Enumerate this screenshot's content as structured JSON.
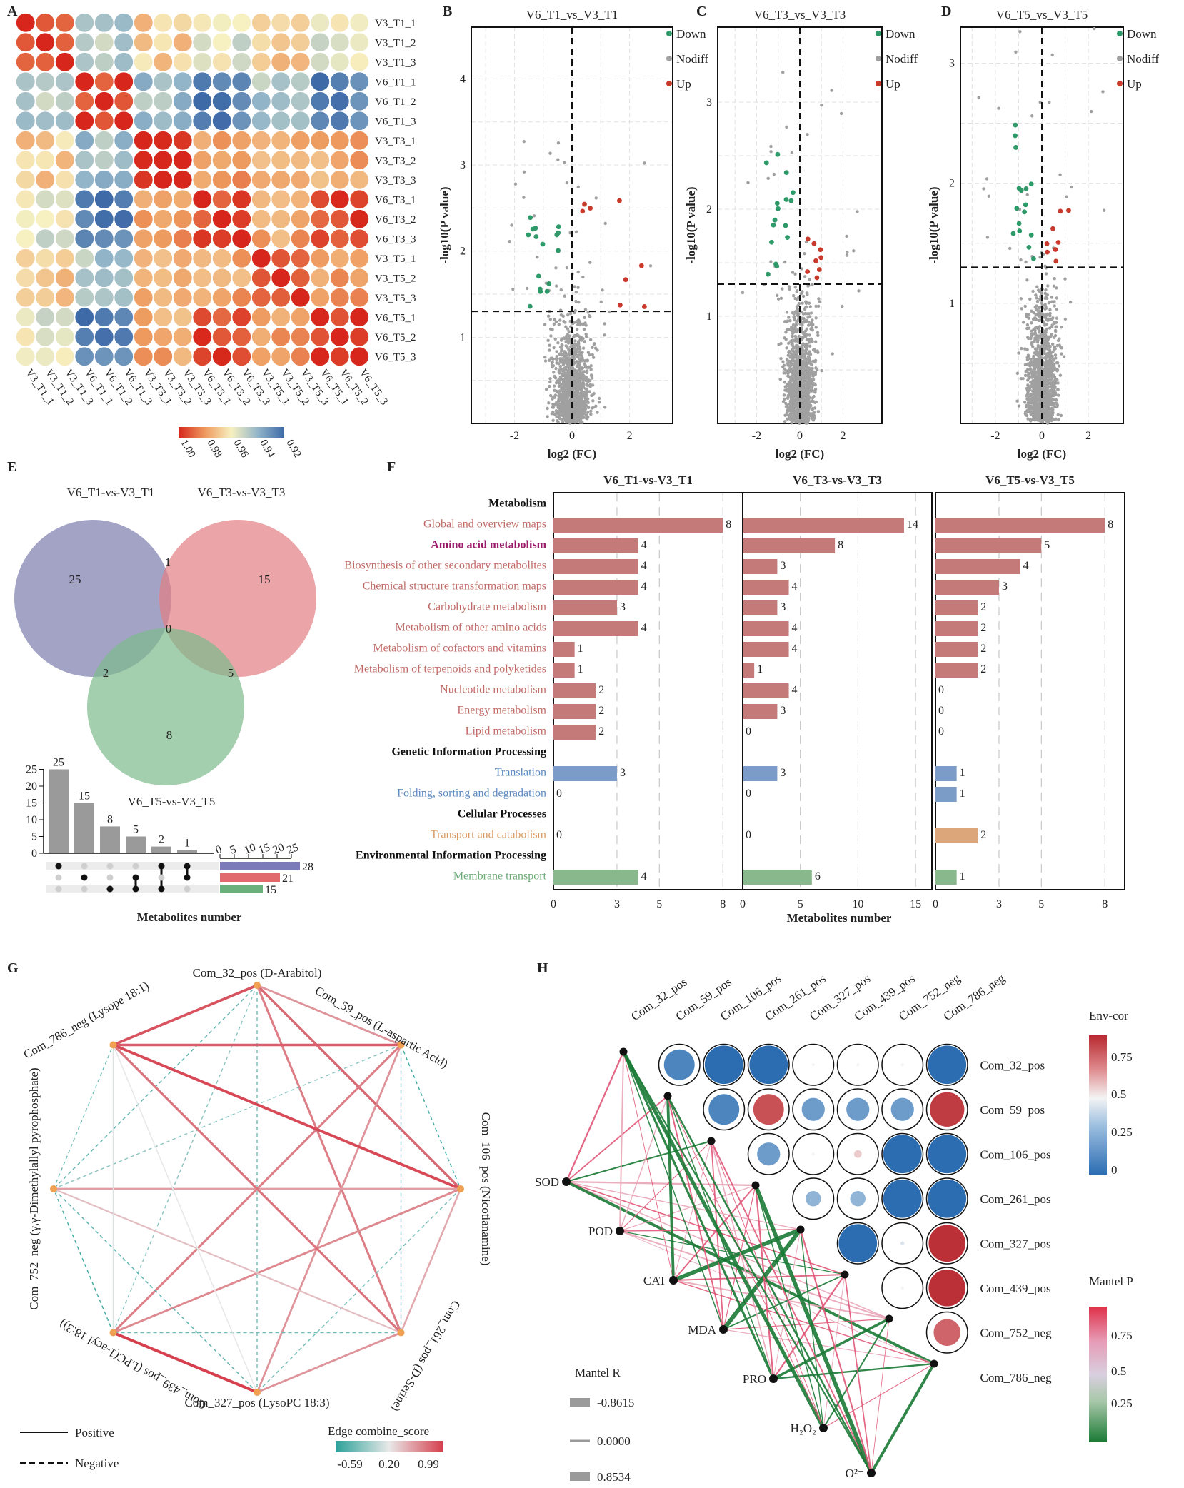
{
  "panel_letters": {
    "a": "A",
    "b": "B",
    "c": "C",
    "d": "D",
    "e": "E",
    "f": "F",
    "g": "G",
    "h": "H"
  },
  "heatmap": {
    "samples": [
      "V3_T1_1",
      "V3_T1_2",
      "V3_T1_3",
      "V6_T1_1",
      "V6_T1_2",
      "V6_T1_3",
      "V3_T3_1",
      "V3_T3_2",
      "V3_T3_3",
      "V6_T3_1",
      "V6_T3_2",
      "V6_T3_3",
      "V3_T5_1",
      "V3_T5_2",
      "V3_T5_3",
      "V6_T5_1",
      "V6_T5_2",
      "V6_T5_3"
    ],
    "colorbar_ticks": [
      "1.00",
      "0.98",
      "0.96",
      "0.94",
      "0.92"
    ]
  },
  "volcano": {
    "ylabel": "-log10(P value)",
    "xlabel": "log2 (FC)",
    "legend": [
      "Down",
      "Nodiff",
      "Up"
    ],
    "colors": {
      "down": "#2e9a69",
      "nodiff": "#a0a0a0",
      "up": "#c73a2c"
    },
    "panels": [
      {
        "title": "V6_T1_vs_V3_T1",
        "yticks": [
          "1",
          "2",
          "3",
          "4"
        ],
        "xticks": [
          "-2",
          "0",
          "2"
        ]
      },
      {
        "title": "V6_T3_vs_V3_T3",
        "yticks": [
          "1",
          "2",
          "3"
        ],
        "xticks": [
          "-2",
          "0",
          "2"
        ]
      },
      {
        "title": "V6_T5_vs_V3_T5",
        "yticks": [
          "1",
          "2",
          "3"
        ],
        "xticks": [
          "-2",
          "0",
          "2"
        ]
      }
    ]
  },
  "venn": {
    "sets": [
      "V6_T1-vs-V3_T1",
      "V6_T3-vs-V3_T3",
      "V6_T5-vs-V3_T5"
    ],
    "counts": {
      "a_only": "25",
      "ab": "1",
      "b_only": "15",
      "abc": "0",
      "ac": "2",
      "bc": "5",
      "c_only": "8"
    },
    "upset_bars": [
      25,
      15,
      8,
      5,
      2,
      1
    ],
    "upset_yticks": [
      "0",
      "5",
      "10",
      "15",
      "20",
      "25"
    ],
    "set_sizes": [
      28,
      21,
      15
    ],
    "set_size_ticks": [
      "0",
      "5",
      "10",
      "15",
      "20",
      "25"
    ],
    "xlabel": "Metabolites number"
  },
  "kegg": {
    "panel_titles": [
      "V6_T1-vs-V3_T1",
      "V6_T3-vs-V3_T3",
      "V6_T5-vs-V3_T5"
    ],
    "xlabel": "Metabolites number",
    "xticks": [
      [
        "0",
        "3",
        "5",
        "8"
      ],
      [
        "0",
        "5",
        "10",
        "15"
      ],
      [
        "0",
        "3",
        "5",
        "8"
      ]
    ],
    "rows": [
      {
        "label": "Metabolism",
        "type": "header"
      },
      {
        "label": "Global and overview maps",
        "type": "metab",
        "values": [
          8,
          14,
          8
        ]
      },
      {
        "label": "Amino acid metabolism",
        "type": "metab_hl",
        "values": [
          4,
          8,
          5
        ]
      },
      {
        "label": "Biosynthesis of other secondary metabolites",
        "type": "metab",
        "values": [
          4,
          3,
          4
        ]
      },
      {
        "label": "Chemical structure transformation maps",
        "type": "metab",
        "values": [
          4,
          4,
          3
        ]
      },
      {
        "label": "Carbohydrate metabolism",
        "type": "metab",
        "values": [
          3,
          3,
          2
        ]
      },
      {
        "label": "Metabolism of other amino acids",
        "type": "metab",
        "values": [
          4,
          4,
          2
        ]
      },
      {
        "label": "Metabolism of cofactors and vitamins",
        "type": "metab",
        "values": [
          1,
          4,
          2
        ]
      },
      {
        "label": "Metabolism of terpenoids and polyketides",
        "type": "metab",
        "values": [
          1,
          1,
          2
        ]
      },
      {
        "label": "Nucleotide metabolism",
        "type": "metab",
        "values": [
          2,
          4,
          0
        ]
      },
      {
        "label": "Energy metabolism",
        "type": "metab",
        "values": [
          2,
          3,
          0
        ]
      },
      {
        "label": "Lipid metabolism",
        "type": "metab",
        "values": [
          2,
          0,
          0
        ]
      },
      {
        "label": "Genetic Information Processing",
        "type": "header"
      },
      {
        "label": "Translation",
        "type": "genetic",
        "values": [
          3,
          3,
          1
        ]
      },
      {
        "label": "Folding, sorting and degradation",
        "type": "genetic",
        "values": [
          0,
          0,
          1
        ]
      },
      {
        "label": "Cellular Processes",
        "type": "header"
      },
      {
        "label": "Transport and catabolism",
        "type": "cellular",
        "values": [
          0,
          0,
          2
        ]
      },
      {
        "label": "Environmental Information Processing",
        "type": "header"
      },
      {
        "label": "Membrane transport",
        "type": "env",
        "values": [
          4,
          6,
          1
        ]
      }
    ],
    "colors": {
      "metab": "#c47a78",
      "metab_hl": "#9c1a6b",
      "genetic": "#7a9cc6",
      "cellular": "#dca67a",
      "env": "#88b88c"
    }
  },
  "network": {
    "nodes": [
      {
        "label": "Com_32_pos (D-Arabitol)"
      },
      {
        "label": "Com_59_pos (L-aspartic Acid)"
      },
      {
        "label": "Com_106_pos (Nicotianamine)"
      },
      {
        "label": "Com_261_pos (D-Serine)"
      },
      {
        "label": "Com_327_pos (LysoPC 18:3)"
      },
      {
        "label": "Com_439_pos (LPC(1-acyl 18:3))"
      },
      {
        "label": "Com_752_neg (γ,γ-Dimethylallyl pyrophosphate)"
      },
      {
        "label": "Com_786_neg (Lysope 18:1)"
      }
    ],
    "edges": [
      {
        "a": 0,
        "b": 7,
        "score": 0.9
      },
      {
        "a": 0,
        "b": 2,
        "score": 0.8
      },
      {
        "a": 0,
        "b": 3,
        "score": 0.7
      },
      {
        "a": 0,
        "b": 1,
        "score": 0.6
      },
      {
        "a": 0,
        "b": 4,
        "score": -0.3
      },
      {
        "a": 0,
        "b": 5,
        "score": -0.2
      },
      {
        "a": 0,
        "b": 6,
        "score": -0.4
      },
      {
        "a": 1,
        "b": 2,
        "score": -0.5
      },
      {
        "a": 1,
        "b": 7,
        "score": 0.85
      },
      {
        "a": 1,
        "b": 3,
        "score": -0.3
      },
      {
        "a": 1,
        "b": 4,
        "score": 0.6
      },
      {
        "a": 1,
        "b": 5,
        "score": 0.7
      },
      {
        "a": 1,
        "b": 6,
        "score": -0.2
      },
      {
        "a": 2,
        "b": 7,
        "score": 0.95
      },
      {
        "a": 2,
        "b": 3,
        "score": 0.5
      },
      {
        "a": 2,
        "b": 4,
        "score": -0.3
      },
      {
        "a": 2,
        "b": 5,
        "score": 0.65
      },
      {
        "a": 2,
        "b": 6,
        "score": 0.55
      },
      {
        "a": 3,
        "b": 4,
        "score": 0.6
      },
      {
        "a": 3,
        "b": 5,
        "score": -0.3
      },
      {
        "a": 3,
        "b": 6,
        "score": 0.4
      },
      {
        "a": 3,
        "b": 7,
        "score": 0.75
      },
      {
        "a": 4,
        "b": 5,
        "score": 0.99
      },
      {
        "a": 4,
        "b": 6,
        "score": -0.4
      },
      {
        "a": 4,
        "b": 7,
        "score": 0.2
      },
      {
        "a": 5,
        "b": 6,
        "score": -0.5
      },
      {
        "a": 5,
        "b": 7,
        "score": 0.15
      },
      {
        "a": 6,
        "b": 7,
        "score": -0.3
      }
    ],
    "legend": {
      "positive": "Positive",
      "negative": "Negative",
      "title": "Edge combine_score",
      "ticks": [
        "-0.59",
        "0.20",
        "0.99"
      ]
    }
  },
  "mantel": {
    "metabolites": [
      "Com_32_pos",
      "Com_59_pos",
      "Com_106_pos",
      "Com_261_pos",
      "Com_327_pos",
      "Com_439_pos",
      "Com_752_neg",
      "Com_786_neg"
    ],
    "env": [
      "SOD",
      "POD",
      "CAT",
      "MDA",
      "PRO",
      "H₂O₂",
      "O²⁻"
    ],
    "corr": [
      [
        0.1,
        0.0,
        0.0,
        0.5,
        0.5,
        0.5,
        0.0
      ],
      [
        0.1,
        0.9,
        0.2,
        0.2,
        0.2,
        0.95
      ],
      [
        0.2,
        0.5,
        0.6,
        0.0,
        0.0
      ],
      [
        0.3,
        0.3,
        0.0,
        0.0
      ],
      [
        0.0,
        0.45,
        0.98
      ],
      [
        0.5,
        0.98
      ],
      [
        0.85
      ]
    ],
    "env_cor_title": "Env-cor",
    "env_cor_ticks": [
      "0.75",
      "0.5",
      "0.25",
      "0"
    ],
    "mantel_p_title": "Mantel P",
    "mantel_p_ticks": [
      "0.75",
      "0.5",
      "0.25"
    ],
    "mantel_r_title": "Mantel R",
    "mantel_r_ticks": [
      "-0.8615",
      "0.0000",
      "0.8534"
    ]
  }
}
